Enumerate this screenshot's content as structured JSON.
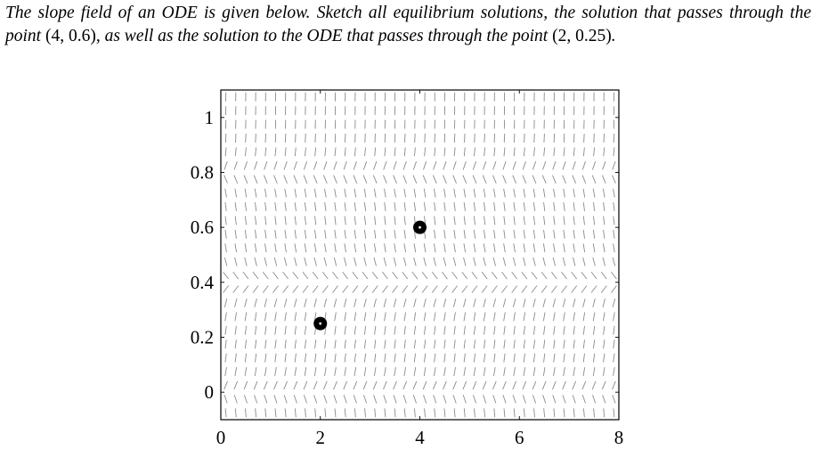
{
  "problem": {
    "part1": "The slope field of an ODE is given below. Sketch all equilibrium solutions, the solution that passes through the point ",
    "point1": "(4, 0.6)",
    "part2": ", as well as the solution to the ODE that passes through the point ",
    "point2": "(2, 0.25)",
    "part3": "."
  },
  "chart_data": {
    "type": "scatter",
    "title": "",
    "xlabel": "",
    "ylabel": "",
    "xlim": [
      0,
      8
    ],
    "ylim": [
      -0.1,
      1.1
    ],
    "x_ticks": [
      "0",
      "2",
      "4",
      "6",
      "8"
    ],
    "y_ticks": [
      "0",
      "0.2",
      "0.4",
      "0.6",
      "0.8",
      "1"
    ],
    "x_tick_values": [
      0,
      2,
      4,
      6,
      8
    ],
    "y_tick_values": [
      0,
      0.2,
      0.4,
      0.6,
      0.8,
      1
    ],
    "grid": false,
    "slope_field": {
      "description": "direction field with slopes depending on y only",
      "x_spacing": 0.2,
      "y_spacing": 0.05,
      "equilibria_y": [
        0,
        0.4,
        0.8
      ]
    },
    "points": [
      {
        "x": 4,
        "y": 0.6
      },
      {
        "x": 2,
        "y": 0.25
      }
    ]
  }
}
